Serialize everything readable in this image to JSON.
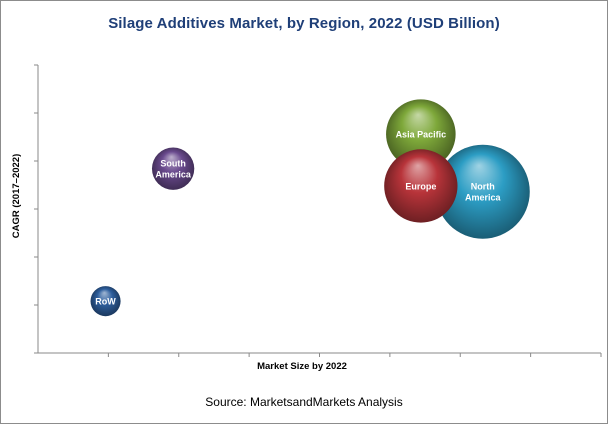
{
  "chart_data": {
    "type": "bubble",
    "title": "Silage Additives Market, by Region, 2022 (USD Billion)",
    "xlabel": "Market Size by 2022",
    "ylabel": "CAGR (2017–2022)",
    "x_tick_labels": false,
    "y_tick_labels": false,
    "grid": false,
    "legend": "none",
    "series": [
      {
        "name": "RoW",
        "label": [
          "RoW"
        ],
        "x": 0.12,
        "y": 0.18,
        "size": 0.32,
        "color": "#2e5f9e"
      },
      {
        "name": "South America",
        "label": [
          "South",
          "America"
        ],
        "x": 0.24,
        "y": 0.64,
        "size": 0.45,
        "color": "#6a4a8e"
      },
      {
        "name": "Asia Pacific",
        "label": [
          "Asia Pacific"
        ],
        "x": 0.68,
        "y": 0.76,
        "size": 0.74,
        "color": "#7ea83a"
      },
      {
        "name": "North America",
        "label": [
          "North",
          "America"
        ],
        "x": 0.79,
        "y": 0.56,
        "size": 1.0,
        "color": "#2c9dc4"
      },
      {
        "name": "Europe",
        "label": [
          "Europe"
        ],
        "x": 0.68,
        "y": 0.58,
        "size": 0.78,
        "color": "#b8343a"
      }
    ]
  },
  "source": "Source:  MarketsandMarkets Analysis"
}
